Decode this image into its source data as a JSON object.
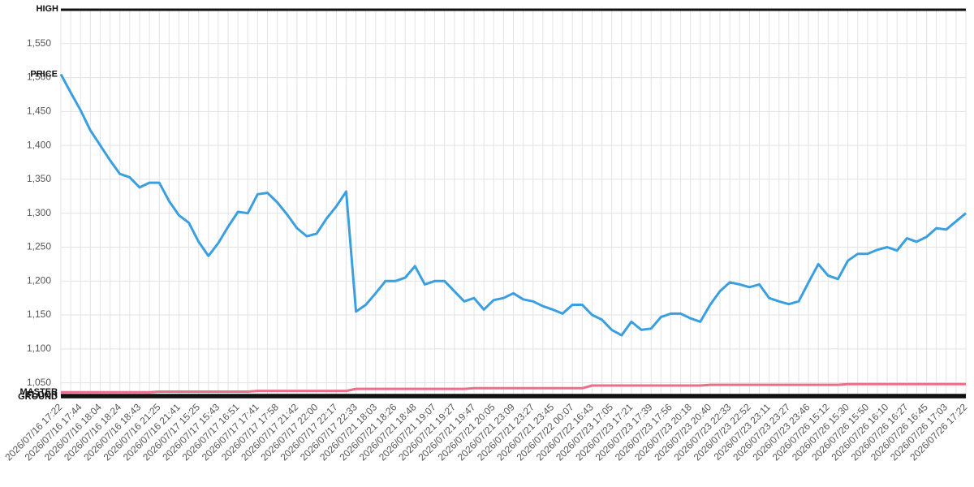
{
  "chart_data": {
    "type": "line",
    "categories": [
      "2026/07/16 17:22",
      null,
      "2026/07/16 17:44",
      null,
      "2026/07/16 18:04",
      null,
      "2026/07/16 18:24",
      null,
      "2026/07/16 18:43",
      null,
      "2026/07/16 21:25",
      null,
      "2026/07/16 21:41",
      null,
      "2026/07/17 15:25",
      null,
      "2026/07/17 15:43",
      null,
      "2026/07/17 16:51",
      null,
      "2026/07/17 17:41",
      null,
      "2026/07/17 17:58",
      null,
      "2026/07/17 21:42",
      null,
      "2026/07/17 22:00",
      null,
      "2026/07/17 22:17",
      null,
      "2026/07/17 22:33",
      null,
      "2026/07/21 18:03",
      null,
      "2026/07/21 18:26",
      null,
      "2026/07/21 18:48",
      null,
      "2026/07/21 19:07",
      null,
      "2026/07/21 19:27",
      null,
      "2026/07/21 19:47",
      null,
      "2026/07/21 20:05",
      null,
      "2026/07/21 23:09",
      null,
      "2026/07/21 23:27",
      null,
      "2026/07/21 23:45",
      null,
      "2026/07/22 00:07",
      null,
      "2026/07/22 16:43",
      null,
      "2026/07/23 17:05",
      null,
      "2026/07/23 17:21",
      null,
      "2026/07/23 17:39",
      null,
      "2026/07/23 17:56",
      null,
      "2026/07/23 20:18",
      null,
      "2026/07/23 20:40",
      null,
      "2026/07/23 22:33",
      null,
      "2026/07/23 22:52",
      null,
      "2026/07/23 23:11",
      null,
      "2026/07/23 23:27",
      null,
      "2026/07/23 23:46",
      null,
      "2026/07/26 15:12",
      null,
      "2026/07/26 15:30",
      null,
      "2026/07/26 15:50",
      null,
      "2026/07/26 16:10",
      null,
      "2026/07/26 16:27",
      null,
      "2026/07/26 16:45",
      null,
      "2026/07/26 17:03",
      null,
      "2026/07/26 17:22"
    ],
    "series": [
      {
        "name": "HIGH",
        "color": "#111111",
        "values": [
          1600,
          1600,
          1600,
          1600,
          1600,
          1600,
          1600,
          1600,
          1600,
          1600,
          1600,
          1600,
          1600,
          1600,
          1600,
          1600,
          1600,
          1600,
          1600,
          1600,
          1600,
          1600,
          1600,
          1600,
          1600,
          1600,
          1600,
          1600,
          1600,
          1600,
          1600,
          1600,
          1600,
          1600,
          1600,
          1600,
          1600,
          1600,
          1600,
          1600,
          1600,
          1600,
          1600,
          1600,
          1600,
          1600,
          1600,
          1600,
          1600,
          1600,
          1600,
          1600,
          1600,
          1600,
          1600,
          1600,
          1600,
          1600,
          1600,
          1600,
          1600,
          1600,
          1600,
          1600,
          1600,
          1600,
          1600,
          1600,
          1600,
          1600,
          1600,
          1600,
          1600,
          1600,
          1600,
          1600,
          1600,
          1600,
          1600,
          1600,
          1600,
          1600,
          1600,
          1600,
          1600,
          1600,
          1600,
          1600,
          1600,
          1600,
          1600,
          1600,
          1600
        ]
      },
      {
        "name": "PRICE",
        "color": "#3a9fe0",
        "values": [
          1505,
          1478,
          1452,
          1422,
          1400,
          1378,
          1358,
          1353,
          1338,
          1345,
          1345,
          1318,
          1297,
          1286,
          1258,
          1237,
          1256,
          1280,
          1302,
          1300,
          1328,
          1330,
          1316,
          1298,
          1278,
          1266,
          1270,
          1292,
          1310,
          1332,
          1155,
          1165,
          1182,
          1200,
          1200,
          1205,
          1222,
          1195,
          1200,
          1200,
          1185,
          1170,
          1175,
          1158,
          1172,
          1175,
          1182,
          1173,
          1170,
          1163,
          1158,
          1152,
          1165,
          1165,
          1150,
          1143,
          1128,
          1120,
          1140,
          1128,
          1130,
          1147,
          1152,
          1152,
          1145,
          1140,
          1165,
          1185,
          1198,
          1195,
          1191,
          1195,
          1175,
          1170,
          1166,
          1170,
          1198,
          1225,
          1208,
          1203,
          1230,
          1240,
          1240,
          1246,
          1250,
          1245,
          1263,
          1258,
          1265,
          1278,
          1276,
          1288,
          1300
        ]
      },
      {
        "name": "MASTER",
        "color": "#ec6f8a",
        "values": [
          1036,
          1036,
          1036,
          1036,
          1036,
          1036,
          1036,
          1036,
          1036,
          1036,
          1037,
          1037,
          1037,
          1037,
          1037,
          1037,
          1037,
          1037,
          1037,
          1037,
          1038,
          1038,
          1038,
          1038,
          1038,
          1038,
          1038,
          1038,
          1038,
          1038,
          1041,
          1041,
          1041,
          1041,
          1041,
          1041,
          1041,
          1041,
          1041,
          1041,
          1041,
          1041,
          1042,
          1042,
          1042,
          1042,
          1042,
          1042,
          1042,
          1042,
          1042,
          1042,
          1042,
          1042,
          1046,
          1046,
          1046,
          1046,
          1046,
          1046,
          1046,
          1046,
          1046,
          1046,
          1046,
          1046,
          1047,
          1047,
          1047,
          1047,
          1047,
          1047,
          1047,
          1047,
          1047,
          1047,
          1047,
          1047,
          1047,
          1047,
          1048,
          1048,
          1048,
          1048,
          1048,
          1048,
          1048,
          1048,
          1048,
          1048,
          1048,
          1048,
          1048
        ]
      },
      {
        "name": "FLOOR",
        "color": "#111111",
        "values": [
          1032,
          1032,
          1032,
          1032,
          1032,
          1032,
          1032,
          1032,
          1032,
          1032,
          1032,
          1032,
          1032,
          1032,
          1032,
          1032,
          1032,
          1032,
          1032,
          1032,
          1032,
          1032,
          1032,
          1032,
          1032,
          1032,
          1032,
          1032,
          1032,
          1032,
          1032,
          1032,
          1032,
          1032,
          1032,
          1032,
          1032,
          1032,
          1032,
          1032,
          1032,
          1032,
          1032,
          1032,
          1032,
          1032,
          1032,
          1032,
          1032,
          1032,
          1032,
          1032,
          1032,
          1032,
          1032,
          1032,
          1032,
          1032,
          1032,
          1032,
          1032,
          1032,
          1032,
          1032,
          1032,
          1032,
          1032,
          1032,
          1032,
          1032,
          1032,
          1032,
          1032,
          1032,
          1032,
          1032,
          1032,
          1032,
          1032,
          1032,
          1032,
          1032,
          1032,
          1032,
          1032,
          1032,
          1032,
          1032,
          1032,
          1032,
          1032,
          1032,
          1032
        ]
      },
      {
        "name": "GROUND",
        "color": "#111111",
        "values": [
          1029,
          1029,
          1029,
          1029,
          1029,
          1029,
          1029,
          1029,
          1029,
          1029,
          1029,
          1029,
          1029,
          1029,
          1029,
          1029,
          1029,
          1029,
          1029,
          1029,
          1029,
          1029,
          1029,
          1029,
          1029,
          1029,
          1029,
          1029,
          1029,
          1029,
          1029,
          1029,
          1029,
          1029,
          1029,
          1029,
          1029,
          1029,
          1029,
          1029,
          1029,
          1029,
          1029,
          1029,
          1029,
          1029,
          1029,
          1029,
          1029,
          1029,
          1029,
          1029,
          1029,
          1029,
          1029,
          1029,
          1029,
          1029,
          1029,
          1029,
          1029,
          1029,
          1029,
          1029,
          1029,
          1029,
          1029,
          1029,
          1029,
          1029,
          1029,
          1029,
          1029,
          1029,
          1029,
          1029,
          1029,
          1029,
          1029,
          1029,
          1029,
          1029,
          1029,
          1029,
          1029,
          1029,
          1029,
          1029,
          1029,
          1029,
          1029,
          1029,
          1029
        ]
      }
    ],
    "ylim": [
      1028,
      1600
    ],
    "yticks": [
      {
        "value": 1050,
        "label": "1,050"
      },
      {
        "value": 1100,
        "label": "1,100"
      },
      {
        "value": 1150,
        "label": "1,150"
      },
      {
        "value": 1200,
        "label": "1,200"
      },
      {
        "value": 1250,
        "label": "1,250"
      },
      {
        "value": 1300,
        "label": "1,300"
      },
      {
        "value": 1350,
        "label": "1,350"
      },
      {
        "value": 1400,
        "label": "1,400"
      },
      {
        "value": 1450,
        "label": "1,450"
      },
      {
        "value": 1500,
        "label": "1,500"
      },
      {
        "value": 1550,
        "label": "1,550"
      }
    ],
    "grid": true
  }
}
